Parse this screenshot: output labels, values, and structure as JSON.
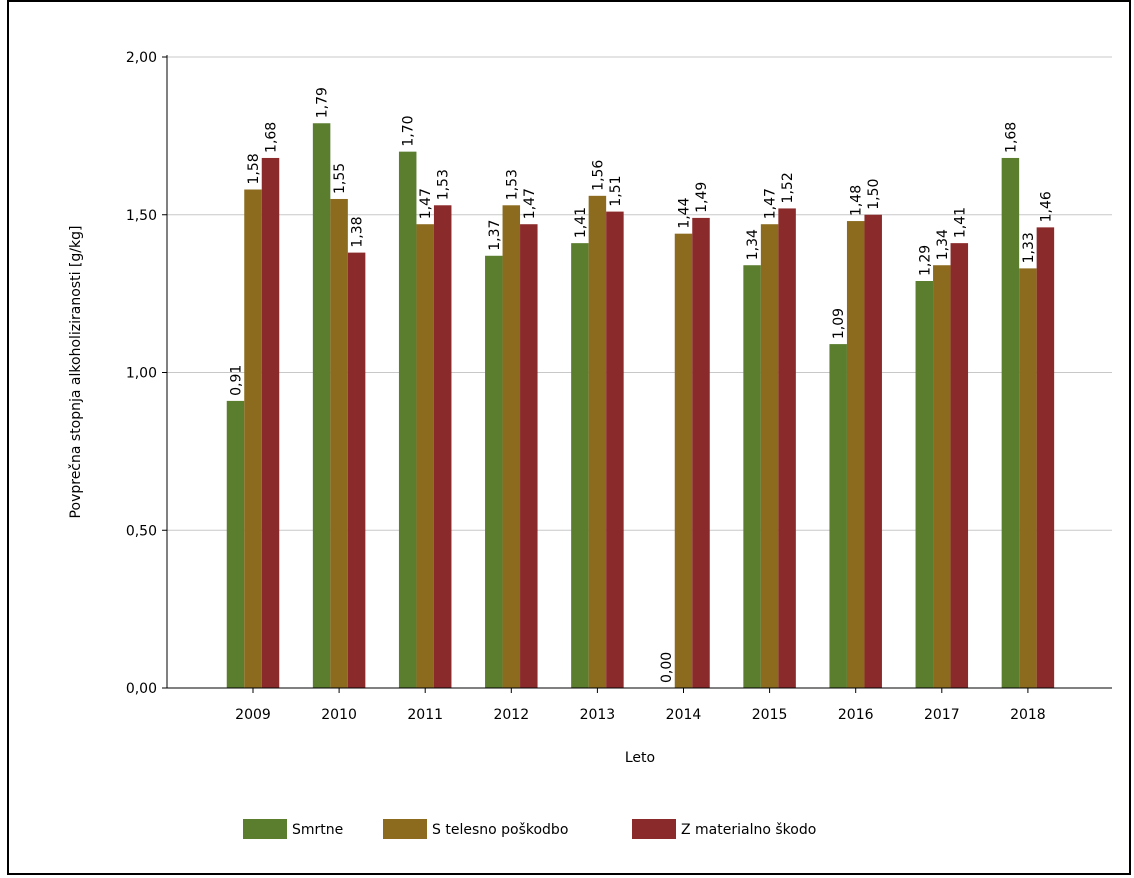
{
  "chart_data": {
    "type": "bar",
    "title": "",
    "xlabel": "Leto",
    "ylabel": "Povprečna stopnja alkoholiziranosti [g/kg]",
    "categories": [
      "2009",
      "2010",
      "2011",
      "2012",
      "2013",
      "2014",
      "2015",
      "2016",
      "2017",
      "2018"
    ],
    "ylim": [
      0,
      2
    ],
    "yticks": [
      "0,00",
      "0,50",
      "1,00",
      "1,50",
      "2,00"
    ],
    "grid": true,
    "legend_position": "bottom",
    "series": [
      {
        "name": "Smrtne",
        "color": "#5a7d2e",
        "values": [
          0.91,
          1.79,
          1.7,
          1.37,
          1.41,
          0.0,
          1.34,
          1.09,
          1.29,
          1.68
        ],
        "labels": [
          "0,91",
          "1,79",
          "1,70",
          "1,37",
          "1,41",
          "0,00",
          "1,34",
          "1,09",
          "1,29",
          "1,68"
        ]
      },
      {
        "name": "S telesno poškodbo",
        "color": "#8c6b1f",
        "values": [
          1.58,
          1.55,
          1.47,
          1.53,
          1.56,
          1.44,
          1.47,
          1.48,
          1.34,
          1.33
        ],
        "labels": [
          "1,58",
          "1,55",
          "1,47",
          "1,53",
          "1,56",
          "1,44",
          "1,47",
          "1,48",
          "1,34",
          "1,33"
        ]
      },
      {
        "name": "Z materialno škodo",
        "color": "#8b2a2a",
        "values": [
          1.68,
          1.38,
          1.53,
          1.47,
          1.51,
          1.49,
          1.52,
          1.5,
          1.41,
          1.46
        ],
        "labels": [
          "1,68",
          "1,38",
          "1,53",
          "1,47",
          "1,51",
          "1,49",
          "1,52",
          "1,50",
          "1,41",
          "1,46"
        ]
      }
    ]
  }
}
